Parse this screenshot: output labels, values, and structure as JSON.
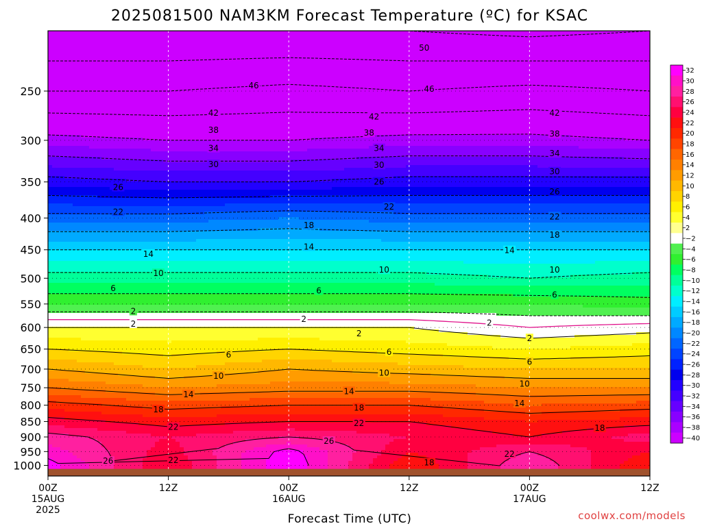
{
  "chart_data": {
    "type": "heatmap",
    "title": "2025081500 NAM3KM Forecast Temperature (ºC) for KSAC",
    "xlabel": "Forecast Time (UTC)",
    "ylabel": "",
    "credit": "coolwx.com/models",
    "x_ticks": [
      {
        "hour": 0,
        "line1": "00Z",
        "line2": "15AUG",
        "line3": "2025"
      },
      {
        "hour": 12,
        "line1": "12Z",
        "line2": "",
        "line3": ""
      },
      {
        "hour": 24,
        "line1": "00Z",
        "line2": "16AUG",
        "line3": ""
      },
      {
        "hour": 36,
        "line1": "12Z",
        "line2": "",
        "line3": ""
      },
      {
        "hour": 48,
        "line1": "00Z",
        "line2": "17AUG",
        "line3": ""
      },
      {
        "hour": 60,
        "line1": "12Z",
        "line2": "",
        "line3": ""
      }
    ],
    "xlim": [
      0,
      60
    ],
    "y_ticks": [
      250,
      300,
      350,
      400,
      450,
      500,
      550,
      600,
      650,
      700,
      750,
      800,
      850,
      900,
      950,
      1000
    ],
    "ylim": [
      1040,
      200
    ],
    "y_scale": "log",
    "surface_pressure_hPa": 1013,
    "grid": true,
    "colorbar": {
      "labels": [
        "32",
        "30",
        "28",
        "26",
        "24",
        "22",
        "20",
        "18",
        "16",
        "14",
        "12",
        "10",
        "8",
        "6",
        "4",
        "2",
        "−2",
        "−4",
        "−6",
        "−8",
        "−10",
        "−12",
        "−14",
        "−16",
        "−18",
        "−20",
        "−22",
        "−24",
        "−26",
        "−28",
        "−30",
        "−32",
        "−34",
        "−36",
        "−38",
        "−40"
      ],
      "colors": [
        "#ff00ff",
        "#ff10c8",
        "#ff20a0",
        "#ff1070",
        "#ff0040",
        "#ff1010",
        "#ff2800",
        "#ff4400",
        "#ff6600",
        "#ff8000",
        "#ff9c00",
        "#ffb800",
        "#ffd400",
        "#fff000",
        "#ffff30",
        "#ffff90",
        "#ffffff",
        "#50f050",
        "#30f030",
        "#00ff60",
        "#00ff99",
        "#00ffcc",
        "#00eeff",
        "#00ccff",
        "#00aaff",
        "#0088ff",
        "#0066ff",
        "#0044ff",
        "#0022ff",
        "#0000ee",
        "#2200ff",
        "#4400ff",
        "#6600ff",
        "#8800ff",
        "#aa00ff",
        "#cc00ff"
      ]
    },
    "level_profiles": [
      {
        "p": 200,
        "t": [
          -54,
          -54,
          -54,
          -54,
          -55,
          -54
        ]
      },
      {
        "p": 250,
        "t": [
          -46,
          -46,
          -45,
          -46,
          -45,
          -46
        ]
      },
      {
        "p": 300,
        "t": [
          -37,
          -38,
          -38,
          -37,
          -37,
          -38
        ]
      },
      {
        "p": 350,
        "t": [
          -29,
          -30,
          -30,
          -29,
          -29,
          -29
        ]
      },
      {
        "p": 400,
        "t": [
          -21,
          -21,
          -20,
          -21,
          -21,
          -21
        ]
      },
      {
        "p": 450,
        "t": [
          -14,
          -14,
          -14,
          -14,
          -14,
          -14
        ]
      },
      {
        "p": 500,
        "t": [
          -9,
          -9,
          -9,
          -9,
          -10,
          -9
        ]
      },
      {
        "p": 550,
        "t": [
          -4,
          -4,
          -4,
          -4,
          -4,
          -5
        ]
      },
      {
        "p": 600,
        "t": [
          2,
          2,
          2,
          2,
          0,
          1
        ]
      },
      {
        "p": 650,
        "t": [
          6,
          5,
          6,
          5,
          4,
          5
        ]
      },
      {
        "p": 700,
        "t": [
          10,
          8,
          10,
          9,
          8,
          8
        ]
      },
      {
        "p": 750,
        "t": [
          14,
          12,
          13,
          13,
          12,
          12
        ]
      },
      {
        "p": 800,
        "t": [
          19,
          17,
          18,
          18,
          16,
          17
        ]
      },
      {
        "p": 850,
        "t": [
          23,
          21,
          22,
          22,
          20,
          21
        ]
      },
      {
        "p": 900,
        "t": [
          27,
          24,
          26,
          24,
          22,
          25
        ]
      },
      {
        "p": 950,
        "t": [
          29,
          23,
          31,
          22,
          26,
          22
        ]
      },
      {
        "p": 1000,
        "t": [
          31,
          22,
          32,
          20,
          28,
          20
        ]
      }
    ],
    "contour_labels": [
      {
        "text": "50",
        "hour": 37.5,
        "p": 213
      },
      {
        "text": "46",
        "hour": 20.5,
        "p": 245
      },
      {
        "text": "46",
        "hour": 38.0,
        "p": 248
      },
      {
        "text": "42",
        "hour": 16.5,
        "p": 271
      },
      {
        "text": "42",
        "hour": 32.5,
        "p": 275
      },
      {
        "text": "42",
        "hour": 50.5,
        "p": 271
      },
      {
        "text": "38",
        "hour": 16.5,
        "p": 289
      },
      {
        "text": "38",
        "hour": 32.0,
        "p": 292
      },
      {
        "text": "38",
        "hour": 50.5,
        "p": 293
      },
      {
        "text": "34",
        "hour": 16.5,
        "p": 309
      },
      {
        "text": "34",
        "hour": 33.0,
        "p": 309
      },
      {
        "text": "34",
        "hour": 50.5,
        "p": 315
      },
      {
        "text": "30",
        "hour": 16.5,
        "p": 328
      },
      {
        "text": "30",
        "hour": 33.0,
        "p": 329
      },
      {
        "text": "30",
        "hour": 50.5,
        "p": 337
      },
      {
        "text": "26",
        "hour": 7.0,
        "p": 357
      },
      {
        "text": "26",
        "hour": 33.0,
        "p": 350
      },
      {
        "text": "26",
        "hour": 50.5,
        "p": 363
      },
      {
        "text": "22",
        "hour": 7.0,
        "p": 391
      },
      {
        "text": "22",
        "hour": 34.0,
        "p": 384
      },
      {
        "text": "22",
        "hour": 50.5,
        "p": 398
      },
      {
        "text": "18",
        "hour": 26.0,
        "p": 411
      },
      {
        "text": "18",
        "hour": 50.5,
        "p": 426
      },
      {
        "text": "14",
        "hour": 10.0,
        "p": 457
      },
      {
        "text": "14",
        "hour": 26.0,
        "p": 445
      },
      {
        "text": "14",
        "hour": 46.0,
        "p": 451
      },
      {
        "text": "10",
        "hour": 11.0,
        "p": 491
      },
      {
        "text": "10",
        "hour": 33.5,
        "p": 485
      },
      {
        "text": "10",
        "hour": 50.5,
        "p": 485
      },
      {
        "text": "6",
        "hour": 6.5,
        "p": 519
      },
      {
        "text": "6",
        "hour": 27.0,
        "p": 524
      },
      {
        "text": "6",
        "hour": 50.5,
        "p": 532
      },
      {
        "text": "2",
        "hour": 8.5,
        "p": 565
      },
      {
        "text": "2",
        "hour": 25.5,
        "p": 582
      },
      {
        "text": "2",
        "hour": 8.5,
        "p": 592
      },
      {
        "text": "2",
        "hour": 31.0,
        "p": 614
      },
      {
        "text": "2",
        "hour": 44.0,
        "p": 590
      },
      {
        "text": "2",
        "hour": 48.0,
        "p": 625
      },
      {
        "text": "6",
        "hour": 18.0,
        "p": 664
      },
      {
        "text": "6",
        "hour": 34.0,
        "p": 657
      },
      {
        "text": "6",
        "hour": 48.0,
        "p": 682
      },
      {
        "text": "10",
        "hour": 17.0,
        "p": 718
      },
      {
        "text": "10",
        "hour": 33.5,
        "p": 710
      },
      {
        "text": "10",
        "hour": 47.5,
        "p": 739
      },
      {
        "text": "14",
        "hour": 14.0,
        "p": 769
      },
      {
        "text": "14",
        "hour": 30.0,
        "p": 760
      },
      {
        "text": "14",
        "hour": 47.0,
        "p": 795
      },
      {
        "text": "18",
        "hour": 11.0,
        "p": 813
      },
      {
        "text": "18",
        "hour": 31.0,
        "p": 808
      },
      {
        "text": "18",
        "hour": 55.0,
        "p": 871
      },
      {
        "text": "22",
        "hour": 12.5,
        "p": 868
      },
      {
        "text": "22",
        "hour": 31.0,
        "p": 856
      },
      {
        "text": "22",
        "hour": 46.0,
        "p": 959
      },
      {
        "text": "26",
        "hour": 28.0,
        "p": 914
      },
      {
        "text": "26",
        "hour": 6.0,
        "p": 984
      },
      {
        "text": "22",
        "hour": 12.5,
        "p": 981
      },
      {
        "text": "18",
        "hour": 38.0,
        "p": 990
      }
    ]
  }
}
